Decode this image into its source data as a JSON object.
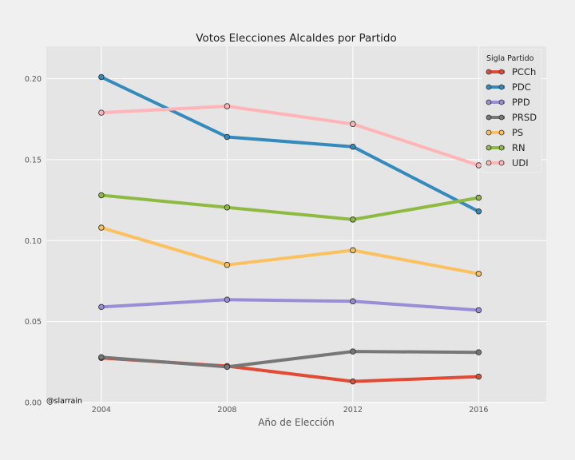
{
  "chart_data": {
    "type": "line",
    "title": "Votos Elecciones Alcaldes por Partido",
    "xlabel": "Año de Elección",
    "ylabel": "",
    "x": [
      2004,
      2008,
      2012,
      2016
    ],
    "xlim": [
      2002.25,
      2018.15
    ],
    "ylim": [
      0.0,
      0.22
    ],
    "xticks": [
      "2004",
      "2008",
      "2012",
      "2016"
    ],
    "yticks": [
      "0.00",
      "0.05",
      "0.10",
      "0.15",
      "0.20"
    ],
    "grid": true,
    "legend_title": "Sigla Partido",
    "legend_position": "top-right",
    "series": [
      {
        "name": "PCCh",
        "color": "#E24A33",
        "values": [
          0.0275,
          0.0225,
          0.013,
          0.016
        ]
      },
      {
        "name": "PDC",
        "color": "#348ABD",
        "values": [
          0.201,
          0.164,
          0.158,
          0.118
        ]
      },
      {
        "name": "PPD",
        "color": "#988ED5",
        "values": [
          0.059,
          0.0635,
          0.0625,
          0.057
        ]
      },
      {
        "name": "PRSD",
        "color": "#777777",
        "values": [
          0.028,
          0.022,
          0.0315,
          0.031
        ]
      },
      {
        "name": "PS",
        "color": "#FBC15E",
        "values": [
          0.108,
          0.085,
          0.094,
          0.0795
        ]
      },
      {
        "name": "RN",
        "color": "#8EBA42",
        "values": [
          0.128,
          0.1205,
          0.113,
          0.1265
        ]
      },
      {
        "name": "UDI",
        "color": "#FFB5B8",
        "values": [
          0.179,
          0.183,
          0.172,
          0.1465
        ]
      }
    ]
  },
  "credit": "@slarrain"
}
